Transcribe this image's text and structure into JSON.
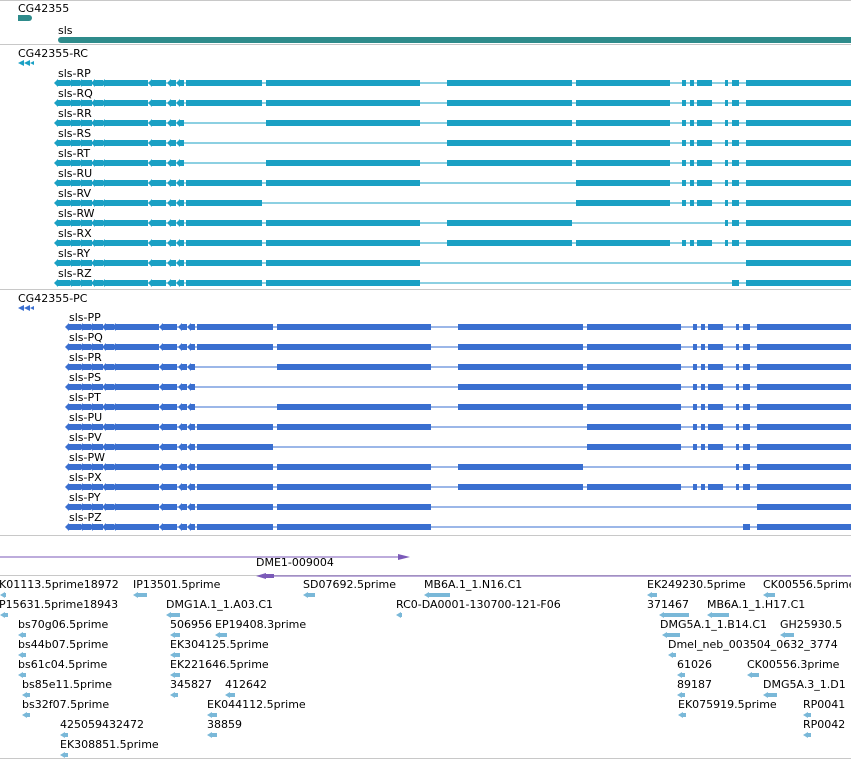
{
  "colors": {
    "gene": "#2e8b8b",
    "rna": "#1aa0c4",
    "protein": "#3a6fd0",
    "purple": "#7b5ab8",
    "est": "#7ab8d8"
  },
  "gene_track": {
    "label_short": "CG42355",
    "label_long": "sls"
  },
  "rna_track": {
    "group_label": "CG42355-RC",
    "transcripts": [
      "sls-RP",
      "sls-RQ",
      "sls-RR",
      "sls-RS",
      "sls-RT",
      "sls-RU",
      "sls-RV",
      "sls-RW",
      "sls-RX",
      "sls-RY",
      "sls-RZ"
    ]
  },
  "protein_track": {
    "group_label": "CG42355-PC",
    "transcripts": [
      "sls-PP",
      "sls-PQ",
      "sls-PR",
      "sls-PS",
      "sls-PT",
      "sls-PU",
      "sls-PV",
      "sls-PW",
      "sls-PX",
      "sls-PY",
      "sls-PZ"
    ]
  },
  "purple_track": {
    "label": "DME1-009004"
  },
  "est_track": {
    "labels": [
      "K01113.5prime18972",
      "IP13501.5prime",
      "SD07692.5prime",
      "MB6A.1_1.N16.C1",
      "EK249230.5prime",
      "CK00556.5prime",
      "P15631.5prime18943",
      "DMG1A.1_1.A03.C1",
      "RC0-DA0001-130700-121-F06",
      "371467",
      "MB6A.1_1.H17.C1",
      "bs70g06.5prime",
      "506956",
      "EP19408.3prime",
      "DMG5A.1_1.B14.C1",
      "GH25930.5",
      "bs44b07.5prime",
      "EK304125.5prime",
      "Dmel_neb_003504_0632_3774",
      "bs61c04.5prime",
      "EK221646.5prime",
      "61026",
      "CK00556.3prime",
      "bs85e11.5prime",
      "345827",
      "412642",
      "89187",
      "DMG5A.3_1.D1",
      "bs32f07.5prime",
      "EK044112.5prime",
      "EK075919.5prime",
      "RP0041",
      "425059432472",
      "38859",
      "RP0042",
      "EK308851.5prime"
    ]
  }
}
